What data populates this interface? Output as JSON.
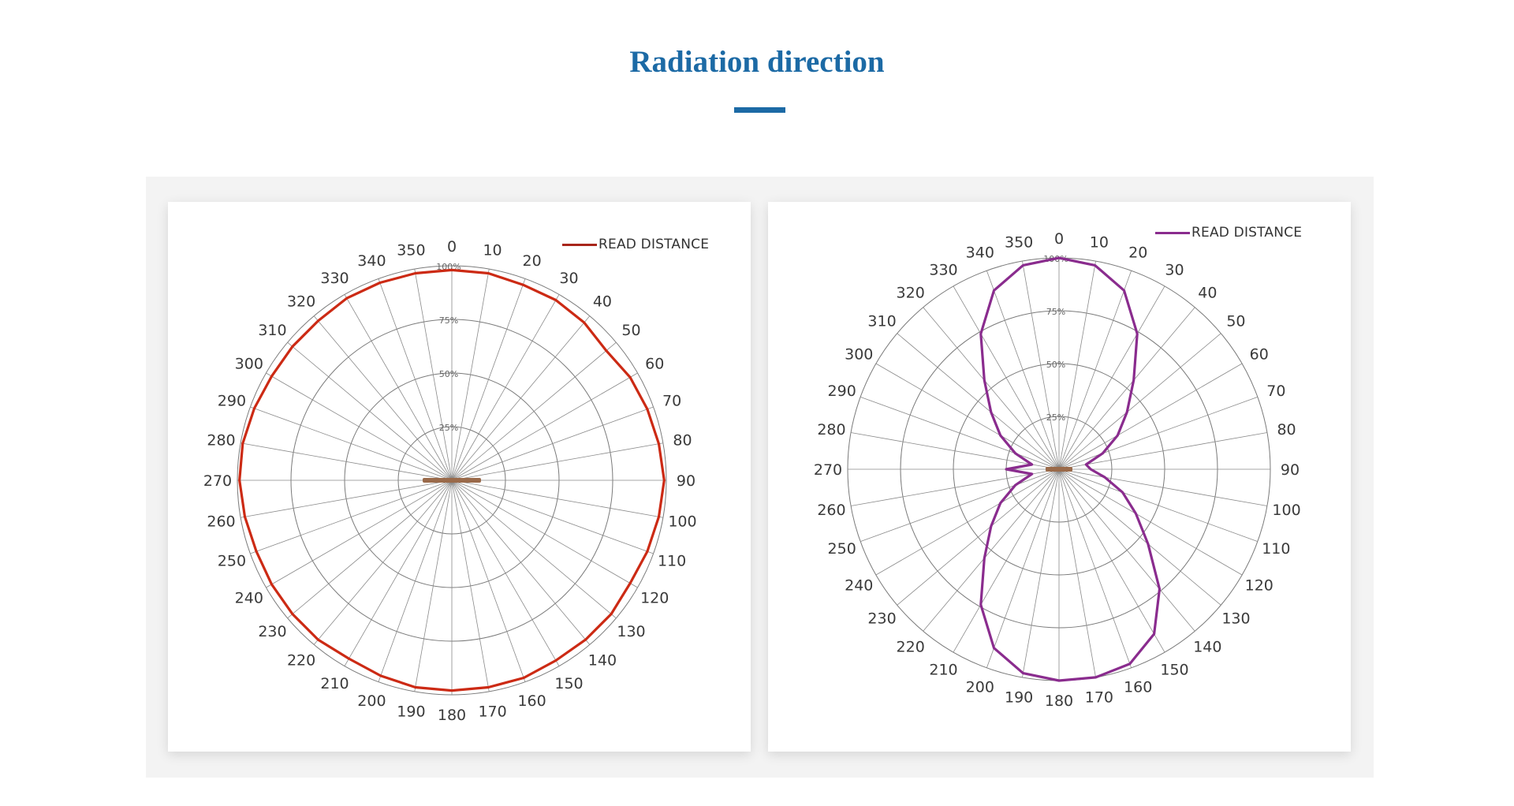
{
  "page": {
    "title": "Radiation direction",
    "accent_color": "#1c6aa5"
  },
  "chart_data": [
    {
      "type": "polar-line",
      "legend": "READ DISTANCE",
      "color": "#cc2a14",
      "angle_labels": [
        "0",
        "10",
        "20",
        "30",
        "40",
        "50",
        "60",
        "70",
        "80",
        "90",
        "100",
        "110",
        "120",
        "130",
        "140",
        "150",
        "160",
        "170",
        "180",
        "190",
        "200",
        "210",
        "220",
        "230",
        "240",
        "250",
        "260",
        "270",
        "280",
        "290",
        "300",
        "310",
        "320",
        "330",
        "340",
        "350"
      ],
      "ring_labels": [
        "25%",
        "50%",
        "75%",
        "100%"
      ],
      "rlim": [
        0,
        100
      ],
      "angles": [
        0,
        10,
        20,
        30,
        40,
        50,
        60,
        70,
        80,
        90,
        100,
        110,
        120,
        130,
        140,
        150,
        160,
        170,
        180,
        190,
        200,
        210,
        220,
        230,
        240,
        250,
        260,
        270,
        280,
        290,
        300,
        310,
        320,
        330,
        340,
        350
      ],
      "values": [
        98,
        98,
        97,
        97,
        96,
        94,
        96,
        97,
        98,
        99,
        98,
        97,
        96,
        97,
        97,
        97,
        98,
        98,
        98,
        98,
        97,
        96,
        97,
        97,
        97,
        97,
        98,
        99,
        99,
        98,
        97,
        97,
        97,
        98,
        98,
        98
      ]
    },
    {
      "type": "polar-line",
      "legend": "READ DISTANCE",
      "color": "#8a2c8e",
      "angle_labels": [
        "0",
        "10",
        "20",
        "30",
        "40",
        "50",
        "60",
        "70",
        "80",
        "90",
        "100",
        "110",
        "120",
        "130",
        "140",
        "150",
        "160",
        "170",
        "180",
        "190",
        "200",
        "210",
        "220",
        "230",
        "240",
        "250",
        "260",
        "270",
        "280",
        "290",
        "300",
        "310",
        "320",
        "330",
        "340",
        "350"
      ],
      "ring_labels": [
        "25%",
        "50%",
        "75%",
        "100%"
      ],
      "rlim": [
        0,
        100
      ],
      "angles": [
        0,
        10,
        20,
        30,
        40,
        50,
        60,
        70,
        80,
        90,
        100,
        110,
        120,
        130,
        140,
        150,
        160,
        170,
        180,
        190,
        200,
        210,
        220,
        230,
        240,
        250,
        260,
        270,
        280,
        290,
        300,
        310,
        320,
        330,
        340,
        350
      ],
      "values": [
        100,
        98,
        90,
        74,
        55,
        42,
        32,
        22,
        13,
        15,
        22,
        32,
        42,
        55,
        74,
        90,
        98,
        100,
        100,
        98,
        90,
        74,
        55,
        42,
        32,
        22,
        13,
        25,
        13,
        22,
        32,
        42,
        55,
        74,
        90,
        98
      ]
    }
  ]
}
